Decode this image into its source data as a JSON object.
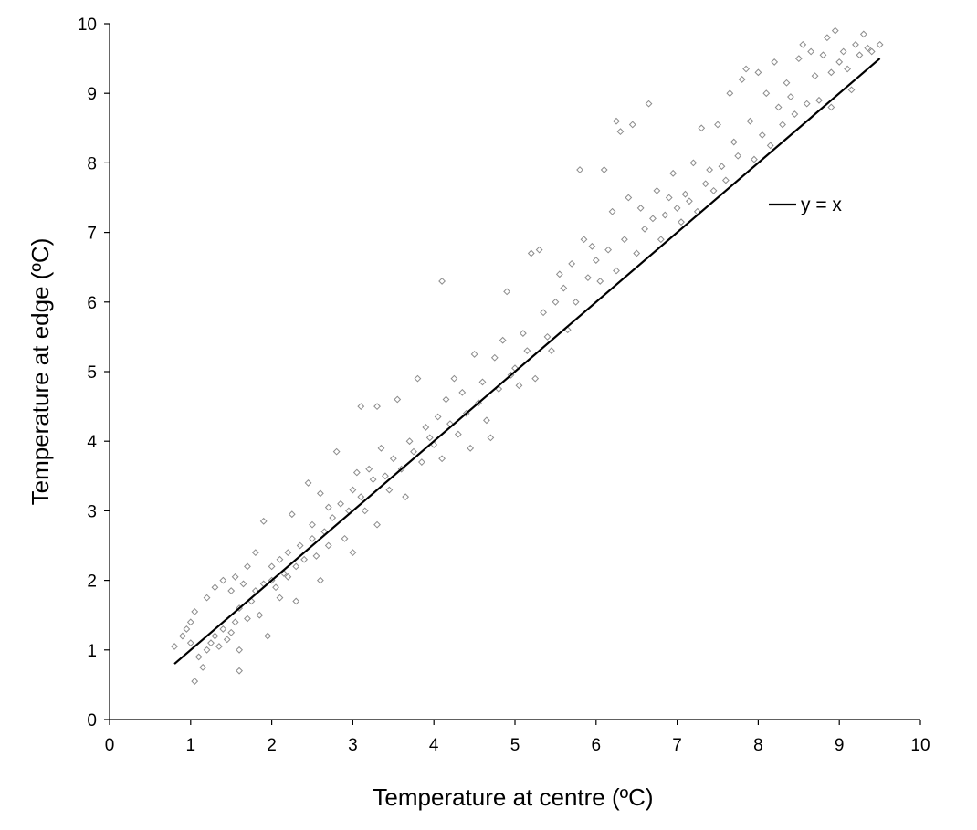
{
  "chart_data": {
    "type": "scatter",
    "xlabel": "Temperature at centre (ºC)",
    "ylabel": "Temperature at edge (ºC)",
    "xlim": [
      0,
      10
    ],
    "ylim": [
      0,
      10
    ],
    "x_ticks": [
      "0",
      "1",
      "2",
      "3",
      "4",
      "5",
      "6",
      "7",
      "8",
      "9",
      "10"
    ],
    "y_ticks": [
      "0",
      "1",
      "2",
      "3",
      "4",
      "5",
      "6",
      "7",
      "8",
      "9",
      "10"
    ],
    "grid": false,
    "legend_position": "right",
    "legend": [
      "y = x"
    ],
    "reference_line": {
      "name": "y = x",
      "x": [
        0.8,
        9.5
      ],
      "y": [
        0.8,
        9.5
      ]
    },
    "series": [
      {
        "type": "scatter",
        "marker": "diamond",
        "points": [
          [
            0.8,
            1.05
          ],
          [
            0.9,
            1.2
          ],
          [
            0.95,
            1.3
          ],
          [
            1.0,
            1.1
          ],
          [
            1.0,
            1.4
          ],
          [
            1.05,
            0.55
          ],
          [
            1.05,
            1.55
          ],
          [
            1.1,
            0.9
          ],
          [
            1.15,
            0.75
          ],
          [
            1.2,
            1.0
          ],
          [
            1.2,
            1.75
          ],
          [
            1.25,
            1.1
          ],
          [
            1.3,
            1.9
          ],
          [
            1.3,
            1.2
          ],
          [
            1.35,
            1.05
          ],
          [
            1.4,
            1.3
          ],
          [
            1.4,
            2.0
          ],
          [
            1.45,
            1.15
          ],
          [
            1.5,
            1.25
          ],
          [
            1.5,
            1.85
          ],
          [
            1.55,
            1.4
          ],
          [
            1.55,
            2.05
          ],
          [
            1.6,
            0.7
          ],
          [
            1.6,
            1.0
          ],
          [
            1.6,
            1.6
          ],
          [
            1.65,
            1.95
          ],
          [
            1.7,
            1.45
          ],
          [
            1.7,
            2.2
          ],
          [
            1.75,
            1.7
          ],
          [
            1.8,
            1.85
          ],
          [
            1.8,
            2.4
          ],
          [
            1.85,
            1.5
          ],
          [
            1.9,
            1.95
          ],
          [
            1.9,
            2.85
          ],
          [
            1.95,
            1.2
          ],
          [
            2.0,
            2.0
          ],
          [
            2.0,
            2.2
          ],
          [
            2.05,
            1.9
          ],
          [
            2.1,
            2.3
          ],
          [
            2.1,
            1.75
          ],
          [
            2.15,
            2.1
          ],
          [
            2.2,
            2.4
          ],
          [
            2.2,
            2.05
          ],
          [
            2.25,
            2.95
          ],
          [
            2.3,
            2.2
          ],
          [
            2.3,
            1.7
          ],
          [
            2.35,
            2.5
          ],
          [
            2.4,
            2.3
          ],
          [
            2.45,
            3.4
          ],
          [
            2.5,
            2.6
          ],
          [
            2.5,
            2.8
          ],
          [
            2.55,
            2.35
          ],
          [
            2.6,
            2.0
          ],
          [
            2.6,
            3.25
          ],
          [
            2.65,
            2.7
          ],
          [
            2.7,
            2.5
          ],
          [
            2.7,
            3.05
          ],
          [
            2.75,
            2.9
          ],
          [
            2.8,
            3.85
          ],
          [
            2.85,
            3.1
          ],
          [
            2.9,
            2.6
          ],
          [
            2.95,
            3.0
          ],
          [
            3.0,
            2.4
          ],
          [
            3.0,
            3.3
          ],
          [
            3.05,
            3.55
          ],
          [
            3.1,
            4.5
          ],
          [
            3.1,
            3.2
          ],
          [
            3.15,
            3.0
          ],
          [
            3.2,
            3.6
          ],
          [
            3.25,
            3.45
          ],
          [
            3.3,
            4.5
          ],
          [
            3.3,
            2.8
          ],
          [
            3.35,
            3.9
          ],
          [
            3.4,
            3.5
          ],
          [
            3.45,
            3.3
          ],
          [
            3.5,
            3.75
          ],
          [
            3.55,
            4.6
          ],
          [
            3.6,
            3.6
          ],
          [
            3.65,
            3.2
          ],
          [
            3.7,
            4.0
          ],
          [
            3.75,
            3.85
          ],
          [
            3.8,
            4.9
          ],
          [
            3.85,
            3.7
          ],
          [
            3.9,
            4.2
          ],
          [
            3.95,
            4.05
          ],
          [
            4.0,
            3.95
          ],
          [
            4.05,
            4.35
          ],
          [
            4.1,
            6.3
          ],
          [
            4.1,
            3.75
          ],
          [
            4.15,
            4.6
          ],
          [
            4.2,
            4.25
          ],
          [
            4.25,
            4.9
          ],
          [
            4.3,
            4.1
          ],
          [
            4.35,
            4.7
          ],
          [
            4.4,
            4.4
          ],
          [
            4.45,
            3.9
          ],
          [
            4.5,
            5.25
          ],
          [
            4.55,
            4.55
          ],
          [
            4.6,
            4.85
          ],
          [
            4.65,
            4.3
          ],
          [
            4.7,
            4.05
          ],
          [
            4.75,
            5.2
          ],
          [
            4.8,
            4.75
          ],
          [
            4.85,
            5.45
          ],
          [
            4.9,
            6.15
          ],
          [
            4.95,
            4.95
          ],
          [
            5.0,
            5.05
          ],
          [
            5.05,
            4.8
          ],
          [
            5.1,
            5.55
          ],
          [
            5.15,
            5.3
          ],
          [
            5.2,
            6.7
          ],
          [
            5.25,
            4.9
          ],
          [
            5.3,
            6.75
          ],
          [
            5.35,
            5.85
          ],
          [
            5.4,
            5.5
          ],
          [
            5.45,
            5.3
          ],
          [
            5.5,
            6.0
          ],
          [
            5.55,
            6.4
          ],
          [
            5.6,
            6.2
          ],
          [
            5.65,
            5.6
          ],
          [
            5.7,
            6.55
          ],
          [
            5.75,
            6.0
          ],
          [
            5.8,
            7.9
          ],
          [
            5.85,
            6.9
          ],
          [
            5.9,
            6.35
          ],
          [
            5.95,
            6.8
          ],
          [
            6.0,
            6.6
          ],
          [
            6.05,
            6.3
          ],
          [
            6.1,
            7.9
          ],
          [
            6.15,
            6.75
          ],
          [
            6.2,
            7.3
          ],
          [
            6.25,
            8.6
          ],
          [
            6.25,
            6.45
          ],
          [
            6.3,
            8.45
          ],
          [
            6.35,
            6.9
          ],
          [
            6.4,
            7.5
          ],
          [
            6.45,
            8.55
          ],
          [
            6.5,
            6.7
          ],
          [
            6.55,
            7.35
          ],
          [
            6.6,
            7.05
          ],
          [
            6.65,
            8.85
          ],
          [
            6.7,
            7.2
          ],
          [
            6.75,
            7.6
          ],
          [
            6.8,
            6.9
          ],
          [
            6.85,
            7.25
          ],
          [
            6.9,
            7.5
          ],
          [
            6.95,
            7.85
          ],
          [
            7.0,
            7.35
          ],
          [
            7.05,
            7.15
          ],
          [
            7.1,
            7.55
          ],
          [
            7.15,
            7.45
          ],
          [
            7.2,
            8.0
          ],
          [
            7.25,
            7.3
          ],
          [
            7.3,
            8.5
          ],
          [
            7.35,
            7.7
          ],
          [
            7.4,
            7.9
          ],
          [
            7.45,
            7.6
          ],
          [
            7.5,
            8.55
          ],
          [
            7.55,
            7.95
          ],
          [
            7.6,
            7.75
          ],
          [
            7.65,
            9.0
          ],
          [
            7.7,
            8.3
          ],
          [
            7.75,
            8.1
          ],
          [
            7.8,
            9.2
          ],
          [
            7.85,
            9.35
          ],
          [
            7.9,
            8.6
          ],
          [
            7.95,
            8.05
          ],
          [
            8.0,
            9.3
          ],
          [
            8.05,
            8.4
          ],
          [
            8.1,
            9.0
          ],
          [
            8.15,
            8.25
          ],
          [
            8.2,
            9.45
          ],
          [
            8.25,
            8.8
          ],
          [
            8.3,
            8.55
          ],
          [
            8.35,
            9.15
          ],
          [
            8.4,
            8.95
          ],
          [
            8.45,
            8.7
          ],
          [
            8.5,
            9.5
          ],
          [
            8.55,
            9.7
          ],
          [
            8.6,
            8.85
          ],
          [
            8.65,
            9.6
          ],
          [
            8.7,
            9.25
          ],
          [
            8.75,
            8.9
          ],
          [
            8.8,
            9.55
          ],
          [
            8.85,
            9.8
          ],
          [
            8.9,
            9.3
          ],
          [
            8.9,
            8.8
          ],
          [
            8.95,
            9.9
          ],
          [
            9.0,
            9.45
          ],
          [
            9.05,
            9.6
          ],
          [
            9.1,
            9.35
          ],
          [
            9.15,
            9.05
          ],
          [
            9.2,
            9.7
          ],
          [
            9.25,
            9.55
          ],
          [
            9.3,
            9.85
          ],
          [
            9.35,
            9.65
          ],
          [
            9.4,
            9.6
          ],
          [
            9.5,
            9.7
          ]
        ]
      }
    ]
  }
}
